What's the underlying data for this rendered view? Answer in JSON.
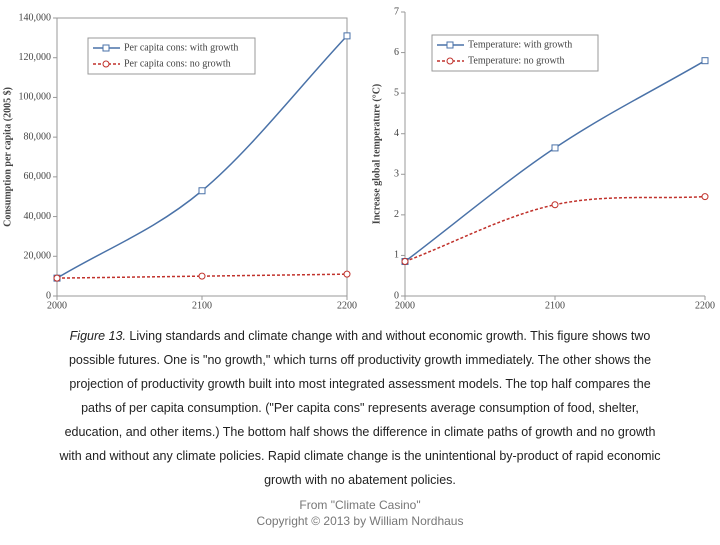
{
  "chart_data": [
    {
      "type": "line",
      "ylabel": "Consumption per capita (2005 $)",
      "x": [
        2000,
        2100,
        2200
      ],
      "xlim": [
        2000,
        2200
      ],
      "xticks": [
        2000,
        2100,
        2200
      ],
      "ylim": [
        0,
        140000
      ],
      "yticks": [
        0,
        {
          "value": 20000,
          "label": "20,000"
        },
        {
          "value": 40000,
          "label": "40,000"
        },
        {
          "value": 60000,
          "label": "60,000"
        },
        {
          "value": 80000,
          "label": "80,000"
        },
        {
          "value": 100000,
          "label": "100,000"
        },
        {
          "value": 120000,
          "label": "120,000"
        },
        {
          "value": 140000,
          "label": "140,000"
        }
      ],
      "series": [
        {
          "name": "Per capita cons: with growth",
          "color": "#4a72a8",
          "values": [
            9000,
            53000,
            131000
          ]
        },
        {
          "name": "Per capita cons: no growth",
          "color": "#c0312b",
          "values": [
            9000,
            10000,
            11000
          ]
        }
      ]
    },
    {
      "type": "line",
      "ylabel": "Increase global temperature (°C)",
      "x": [
        2000,
        2100,
        2200
      ],
      "xlim": [
        2000,
        2200
      ],
      "xticks": [
        2000,
        2100,
        2200
      ],
      "ylim": [
        0,
        7
      ],
      "yticks": [
        0,
        1,
        2,
        3,
        4,
        5,
        6,
        7
      ],
      "series": [
        {
          "name": "Temperature: with growth",
          "color": "#4a72a8",
          "values": [
            0.85,
            3.65,
            5.8
          ]
        },
        {
          "name": "Temperature: no growth",
          "color": "#c0312b",
          "values": [
            0.85,
            2.25,
            2.45
          ]
        }
      ]
    }
  ],
  "caption": {
    "label": "Figure 13.",
    "lines": [
      " Living standards and climate change with and without economic growth. This figure shows two",
      "possible futures. One is \"no growth,\" which turns off productivity growth immediately. The other shows the",
      "projection of productivity growth built into most integrated assessment models. The top half compares the",
      "paths of per capita consumption. (\"Per capita cons\" represents average consumption of food, shelter,",
      "education, and other items.) The bottom half shows the difference in climate paths of growth and no growth",
      "with and without any climate policies. Rapid  climate change is the unintentional by-product of rapid economic",
      "growth with no abatement policies."
    ]
  },
  "footer": [
    "From \"Climate Casino\"",
    "Copyright © 2013 by William Nordhaus"
  ]
}
